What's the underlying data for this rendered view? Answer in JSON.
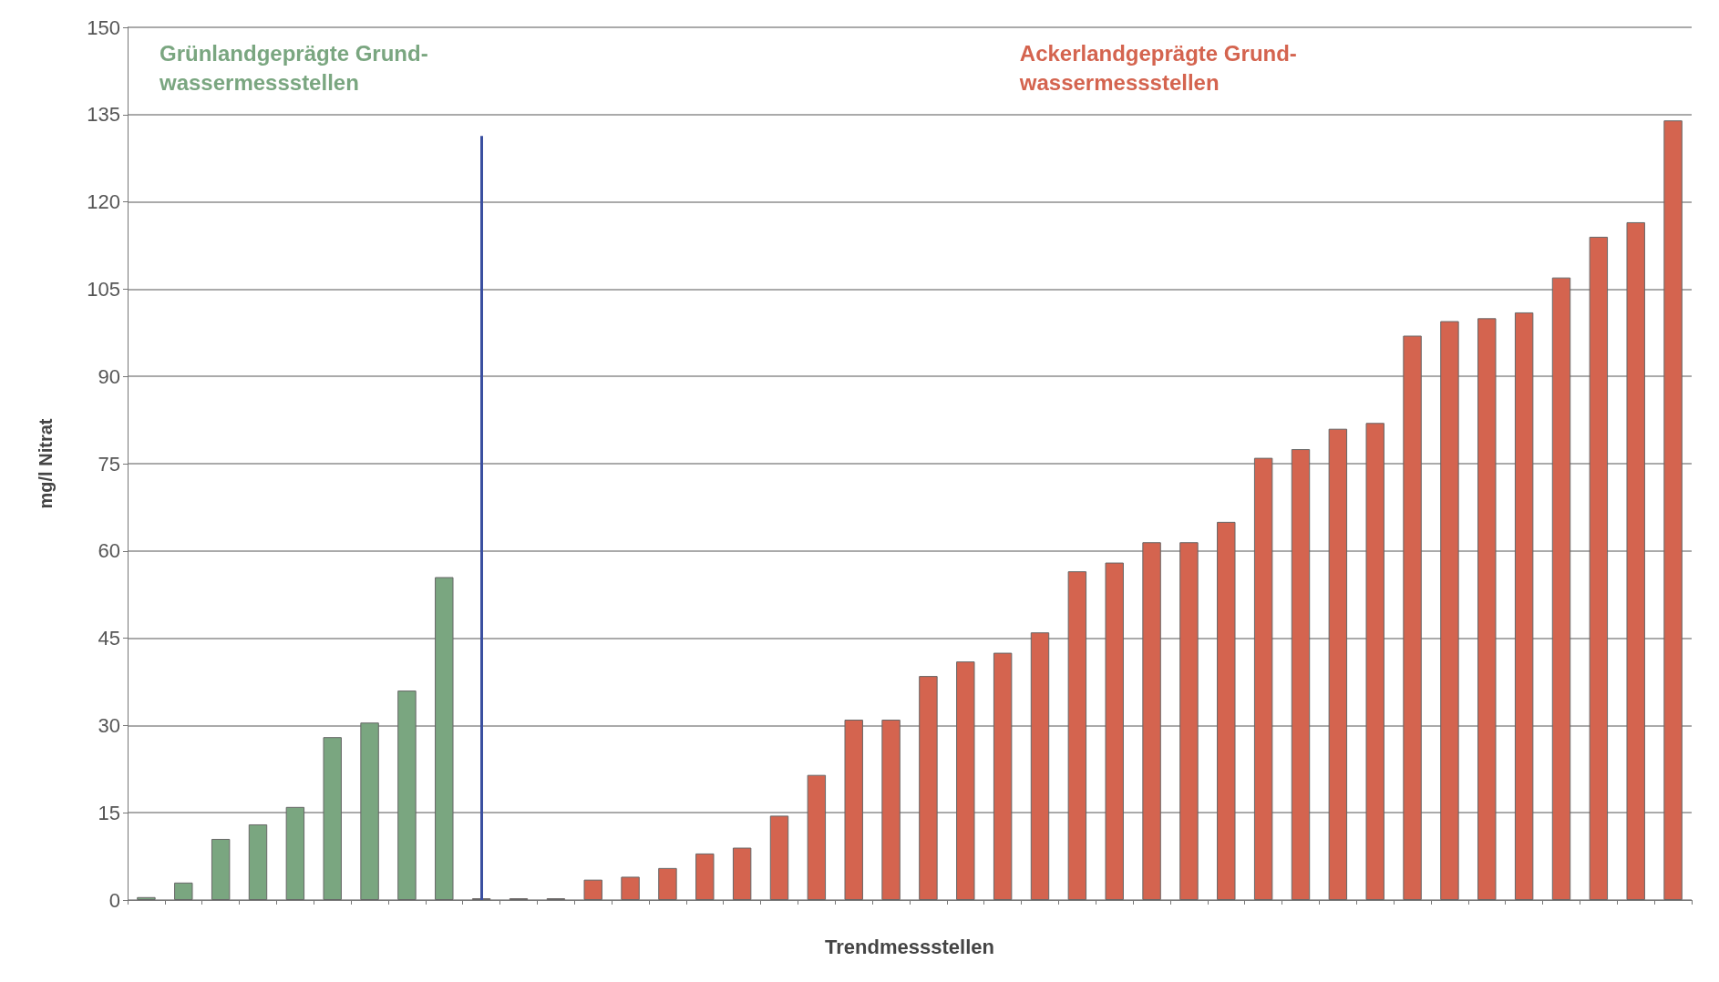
{
  "chart_data": {
    "type": "bar",
    "xlabel": "Trendmessstellen",
    "ylabel": "mg/l Nitrat",
    "categories": [
      null,
      null,
      null,
      null,
      null,
      null,
      null,
      null,
      null,
      null,
      null,
      null,
      null,
      null,
      null,
      null,
      null,
      null,
      null,
      null,
      null,
      null,
      null,
      null,
      null,
      null,
      null,
      null,
      null,
      null,
      null,
      null,
      null,
      null,
      null,
      null,
      null,
      null,
      null,
      null,
      null,
      null
    ],
    "series": [
      {
        "color": "#7aa680",
        "values": [
          0.5,
          3,
          10.5,
          13,
          16,
          28,
          30.5,
          36,
          55.5,
          null,
          null,
          null,
          null,
          null,
          null,
          null,
          null,
          null,
          null,
          null,
          null,
          null,
          null,
          null,
          null,
          null,
          null,
          null,
          null,
          null,
          null,
          null,
          null,
          null,
          null,
          null,
          null,
          null,
          null,
          null,
          null,
          null
        ]
      },
      {
        "color": "#d4644f",
        "values": [
          null,
          null,
          null,
          null,
          null,
          null,
          null,
          null,
          null,
          0.3,
          0.3,
          0.3,
          3.5,
          4,
          5.5,
          8,
          9,
          14.5,
          21.5,
          31,
          31,
          38.5,
          41,
          42.5,
          46,
          56.5,
          58,
          61.5,
          61.5,
          65,
          76,
          77.5,
          81,
          82,
          97,
          99.5,
          100,
          101,
          107,
          114,
          116.5,
          134
        ]
      }
    ],
    "ylim": [
      0,
      150
    ],
    "yticks": [
      0,
      15,
      30,
      45,
      60,
      75,
      90,
      105,
      120,
      135,
      150
    ],
    "grid": "y",
    "annotations": [
      "Grünlandgeprägte Grund-\nwassermessstellen",
      "Ackerlandgeprägte Grund-\nwassermessstellen"
    ]
  }
}
